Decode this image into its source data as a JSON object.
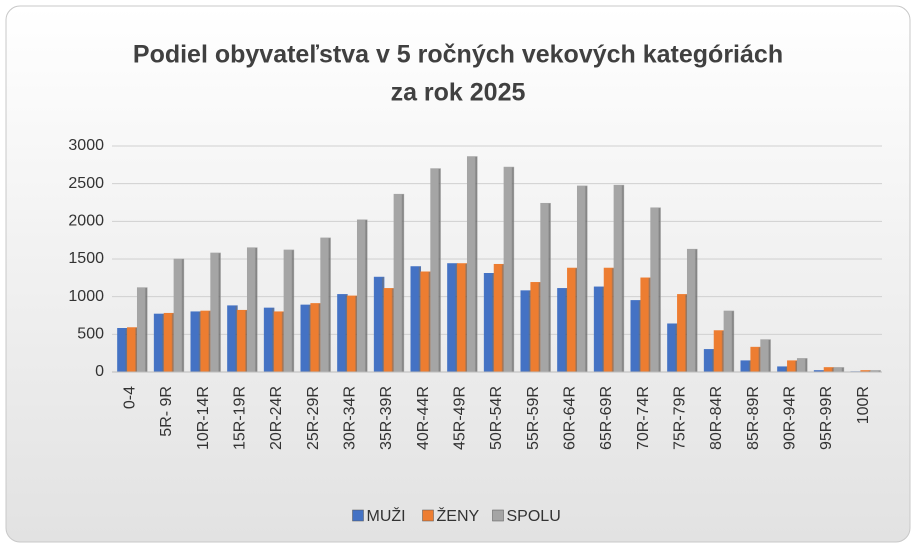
{
  "chart_data": {
    "type": "bar",
    "title": [
      "Podiel obyvateľstva v 5 ročných vekových kategóriách",
      "za rok 2025"
    ],
    "categories": [
      "0-4",
      "5R- 9R",
      "10R-14R",
      "15R-19R",
      "20R-24R",
      "25R-29R",
      "30R-34R",
      "35R-39R",
      "40R-44R",
      "45R-49R",
      "50R-54R",
      "55R-59R",
      "60R-64R",
      "65R-69R",
      "70R-74R",
      "75R-79R",
      "80R-84R",
      "85R-89R",
      "90R-94R",
      "95R-99R",
      "100R"
    ],
    "series": [
      {
        "name": "MUŽI",
        "color": "#4472c4",
        "values": [
          580,
          770,
          800,
          880,
          850,
          890,
          1030,
          1260,
          1400,
          1440,
          1310,
          1080,
          1110,
          1130,
          950,
          640,
          300,
          150,
          70,
          20,
          5
        ]
      },
      {
        "name": "ŽENY",
        "color": "#ed7d31",
        "values": [
          590,
          780,
          810,
          820,
          800,
          910,
          1010,
          1110,
          1330,
          1440,
          1430,
          1190,
          1380,
          1380,
          1250,
          1030,
          550,
          330,
          150,
          60,
          20
        ]
      },
      {
        "name": "SPOLU",
        "color": "#a5a5a5",
        "values": [
          1120,
          1500,
          1580,
          1650,
          1620,
          1780,
          2020,
          2360,
          2700,
          2860,
          2720,
          2240,
          2470,
          2480,
          2180,
          1630,
          810,
          430,
          180,
          60,
          20
        ]
      }
    ],
    "ylim": [
      0,
      3000
    ],
    "yticks": [
      0,
      500,
      1000,
      1500,
      2000,
      2500,
      3000
    ],
    "grid": true,
    "legend": "bottom"
  }
}
